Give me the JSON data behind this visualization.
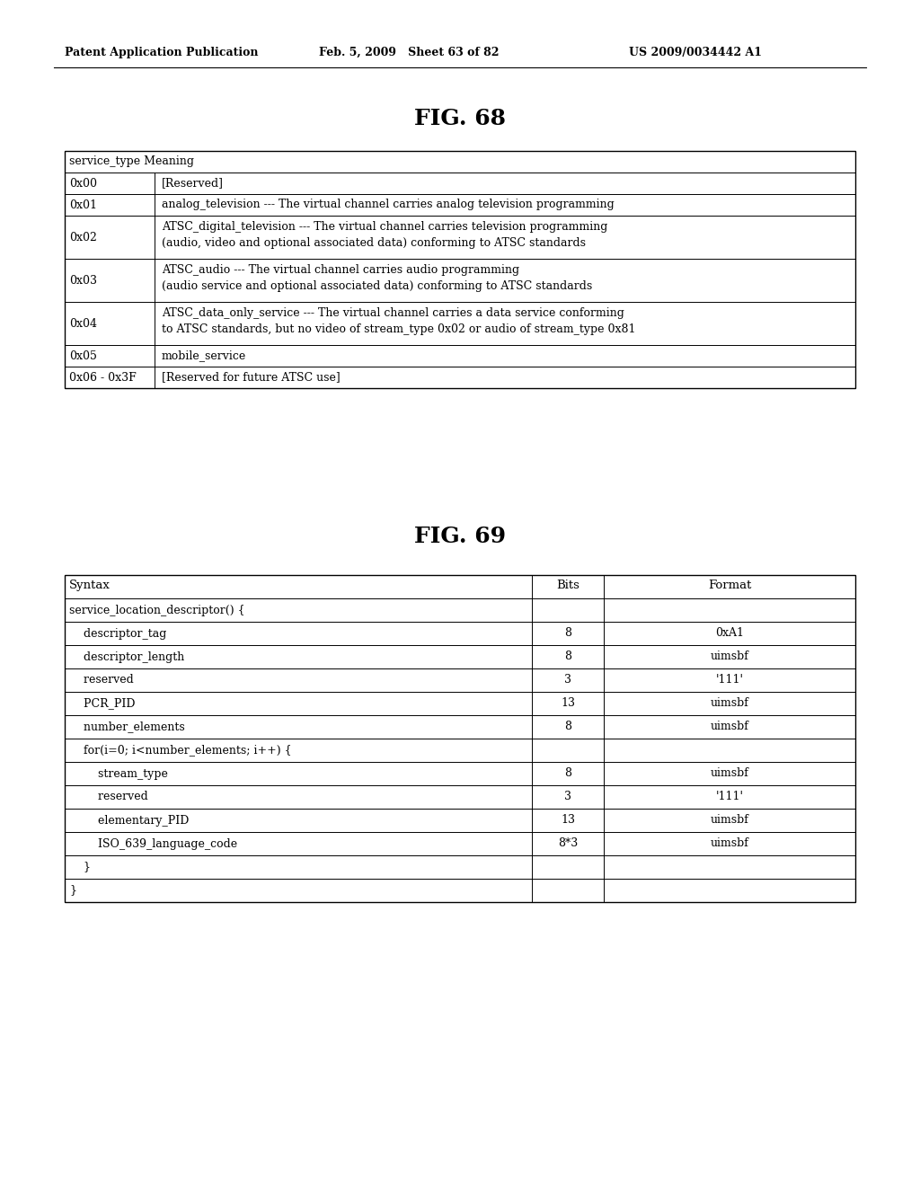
{
  "header_left": "Patent Application Publication",
  "header_center": "Feb. 5, 2009   Sheet 63 of 82",
  "header_right": "US 2009/0034442 A1",
  "fig68_title": "FIG. 68",
  "fig69_title": "FIG. 69",
  "table68_rows": [
    [
      "0x00",
      "[Reserved]"
    ],
    [
      "0x01",
      "analog_television --- The virtual channel carries analog television programming"
    ],
    [
      "0x02",
      "ATSC_digital_television --- The virtual channel carries television programming\n(audio, video and optional associated data) conforming to ATSC standards"
    ],
    [
      "0x03",
      "ATSC_audio --- The virtual channel carries audio programming\n(audio service and optional associated data) conforming to ATSC standards"
    ],
    [
      "0x04",
      "ATSC_data_only_service --- The virtual channel carries a data service conforming\nto ATSC standards, but no video of stream_type 0x02 or audio of stream_type 0x81"
    ],
    [
      "0x05",
      "mobile_service"
    ],
    [
      "0x06 - 0x3F",
      "[Reserved for future ATSC use]"
    ]
  ],
  "table69_headers": [
    "Syntax",
    "Bits",
    "Format"
  ],
  "table69_rows": [
    [
      "service_location_descriptor() {",
      "",
      ""
    ],
    [
      "    descriptor_tag",
      "8",
      "0xA1"
    ],
    [
      "    descriptor_length",
      "8",
      "uimsbf"
    ],
    [
      "    reserved",
      "3",
      "'111'"
    ],
    [
      "    PCR_PID",
      "13",
      "uimsbf"
    ],
    [
      "    number_elements",
      "8",
      "uimsbf"
    ],
    [
      "    for(i=0; i<number_elements; i++) {",
      "",
      ""
    ],
    [
      "        stream_type",
      "8",
      "uimsbf"
    ],
    [
      "        reserved",
      "3",
      "'111'"
    ],
    [
      "        elementary_PID",
      "13",
      "uimsbf"
    ],
    [
      "        ISO_639_language_code",
      "8*3",
      "uimsbf"
    ],
    [
      "    }",
      "",
      ""
    ],
    [
      "}",
      "",
      ""
    ]
  ],
  "bg_color": "#ffffff",
  "text_color": "#000000"
}
